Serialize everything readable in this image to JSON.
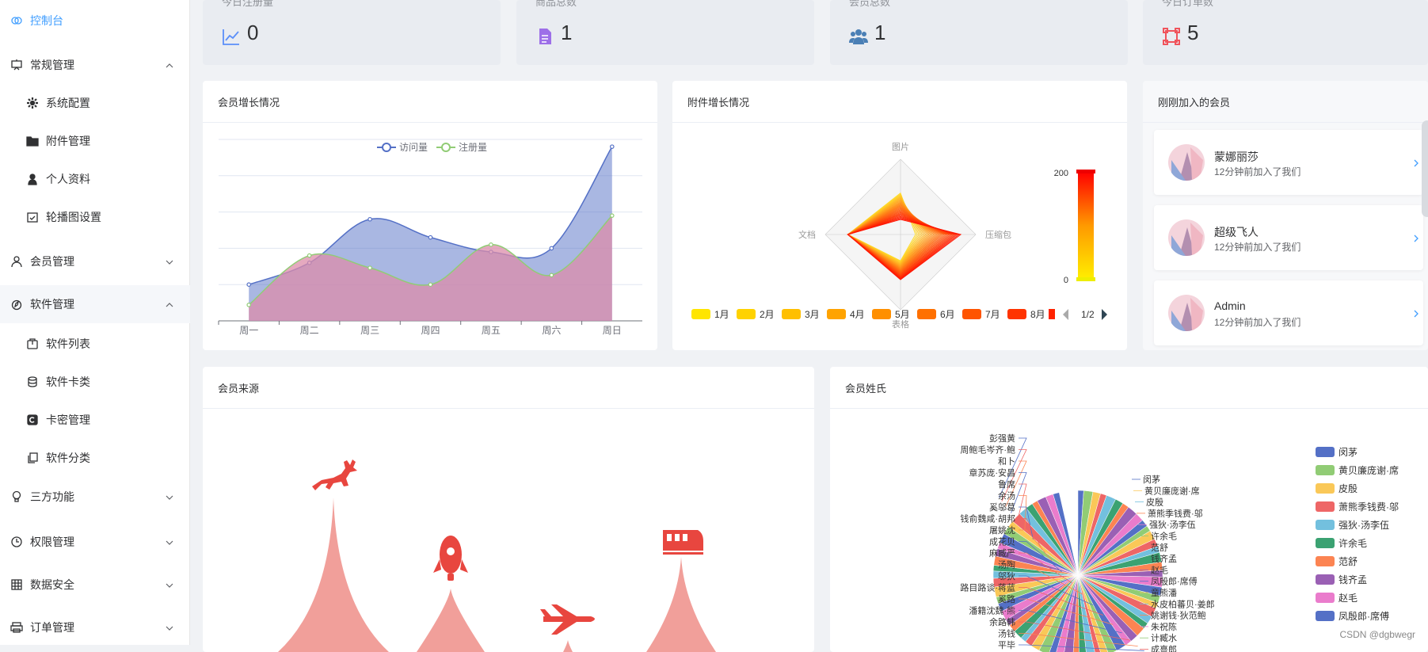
{
  "sidebar": {
    "items": [
      {
        "label": "控制台",
        "icon": "dashboard-icon",
        "type": "top",
        "active": true
      },
      {
        "label": "常规管理",
        "icon": "presentation-icon",
        "type": "group",
        "expanded": true
      },
      {
        "label": "系统配置",
        "icon": "gear-icon",
        "type": "sub"
      },
      {
        "label": "附件管理",
        "icon": "folder-icon",
        "type": "sub"
      },
      {
        "label": "个人资料",
        "icon": "user-icon",
        "type": "sub"
      },
      {
        "label": "轮播图设置",
        "icon": "picture-icon",
        "type": "sub"
      },
      {
        "label": "会员管理",
        "icon": "user-outline-icon",
        "type": "group",
        "expanded": false
      },
      {
        "label": "软件管理",
        "icon": "compass-icon",
        "type": "group",
        "expanded": true
      },
      {
        "label": "软件列表",
        "icon": "bag-icon",
        "type": "sub"
      },
      {
        "label": "软件卡类",
        "icon": "coins-icon",
        "type": "sub"
      },
      {
        "label": "卡密管理",
        "icon": "card-icon",
        "type": "sub"
      },
      {
        "label": "软件分类",
        "icon": "copy-icon",
        "type": "sub"
      },
      {
        "label": "三方功能",
        "icon": "hot-air-balloon-icon",
        "type": "group",
        "expanded": false
      },
      {
        "label": "权限管理",
        "icon": "clock-icon",
        "type": "group",
        "expanded": false
      },
      {
        "label": "数据安全",
        "icon": "grid-icon",
        "type": "group",
        "expanded": false
      },
      {
        "label": "订单管理",
        "icon": "printer-icon",
        "type": "group",
        "expanded": false
      }
    ]
  },
  "stats": [
    {
      "label": "今日注册量",
      "value": "0",
      "icon": "trend-chart-icon",
      "color": "#5b8ff9"
    },
    {
      "label": "商品总数",
      "value": "1",
      "icon": "document-icon",
      "color": "#9d6fe8"
    },
    {
      "label": "会员总数",
      "value": "1",
      "icon": "users-icon",
      "color": "#4a7fb5"
    },
    {
      "label": "今日订单数",
      "value": "5",
      "icon": "frame-icon",
      "color": "#f0545c"
    }
  ],
  "panels": {
    "growth_title": "会员增长情况",
    "attach_title": "附件增长情况",
    "recent_title": "刚刚加入的会员",
    "source_title": "会员来源",
    "surname_title": "会员姓氏"
  },
  "chart_data": [
    {
      "type": "area",
      "categories": [
        "周一",
        "周二",
        "周三",
        "周四",
        "周五",
        "周六",
        "周日"
      ],
      "series": [
        {
          "name": "访问量",
          "values": [
            50,
            80,
            140,
            115,
            95,
            100,
            240
          ],
          "color": "#5470c6"
        },
        {
          "name": "注册量",
          "values": [
            22,
            90,
            73,
            50,
            105,
            63,
            145
          ],
          "color": "#91cc75"
        }
      ],
      "ylim": [
        0,
        250
      ],
      "grid": true,
      "legend": "top-center"
    },
    {
      "type": "radar",
      "indicators": [
        "图片",
        "压缩包",
        "表格",
        "文档"
      ],
      "series_names": [
        "1月",
        "2月",
        "3月",
        "4月",
        "5月",
        "6月",
        "7月",
        "8月"
      ],
      "visual_map": {
        "min": "0",
        "max": "200"
      },
      "legend_page": "1/2"
    }
  ],
  "recent_members": [
    {
      "name": "蒙娜丽莎",
      "sub": "12分钟前加入了我们"
    },
    {
      "name": "超级飞人",
      "sub": "12分钟前加入了我们"
    },
    {
      "name": "Admin",
      "sub": "12分钟前加入了我们"
    }
  ],
  "pie_legend": [
    "闵茅",
    "黄贝廉庞谢·席",
    "皮殷",
    "萧熊季钱费·邬",
    "强狄·汤李伍",
    "许余毛",
    "范舒",
    "钱齐孟",
    "赵毛",
    "凤殷郎·席傅"
  ],
  "pie_labels_left": [
    "彭强黄",
    "周鲍毛岑齐·鲍",
    "和卜",
    "章苏庞·安昌",
    "鲁席",
    "余汤",
    "奚邬葛",
    "钱俞魏咸·胡邦",
    "屠姚沈",
    "成花贝",
    "麻臧严",
    "汤陶",
    "邬狄",
    "路目路谈·蒋蓝",
    "奚路",
    "潘籍沈魏·熊",
    "余路韩",
    "汤钱",
    "平毕"
  ],
  "pie_labels_right": [
    "闵茅",
    "黄贝廉庞谢·席",
    "皮殷",
    "萧熊季钱费·邬",
    "强狄·汤李伍",
    "许余毛",
    "范舒",
    "钱齐孟",
    "赵毛",
    "凤殷郎·席傅",
    "童熊潘",
    "水皮柏蕃贝·姜郎",
    "姚谢钱·狄范鲍",
    "朱祝陈",
    "计臧水",
    "成熹郎"
  ],
  "watermark": "CSDN @dgbwegr"
}
